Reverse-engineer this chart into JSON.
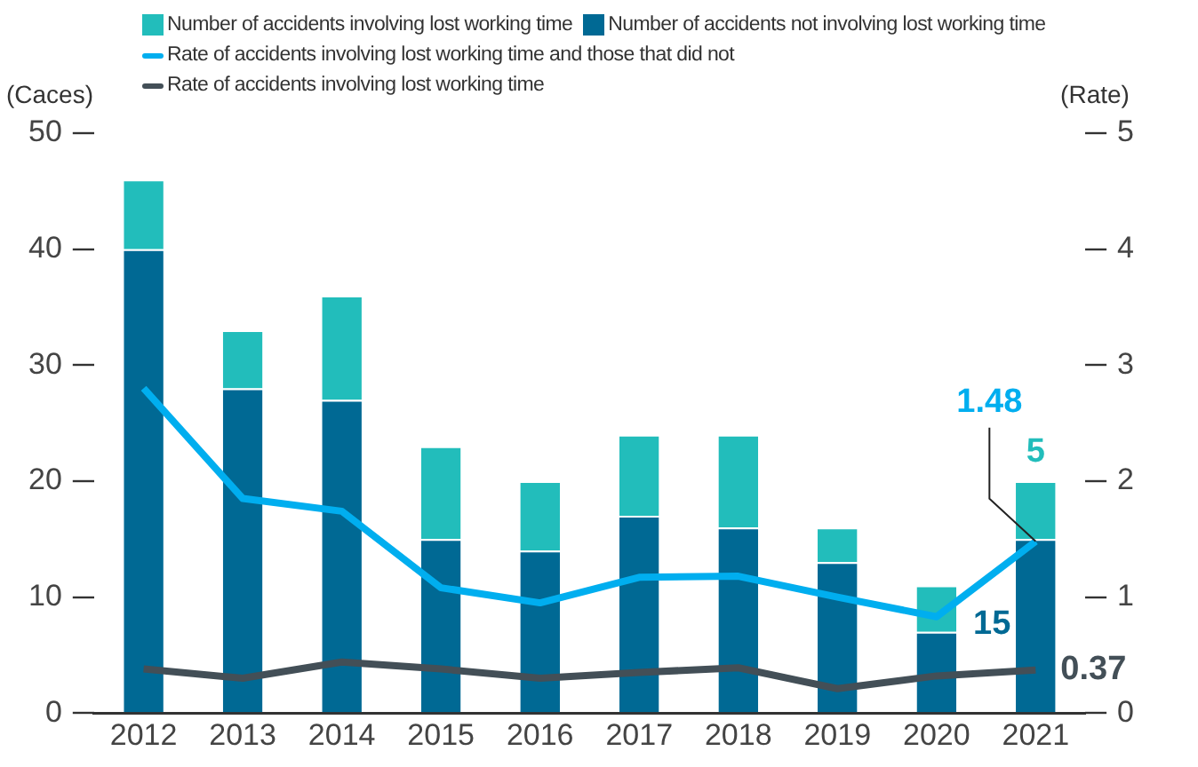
{
  "chart_data": {
    "type": "bar",
    "stacked": true,
    "ylabel": "(Caces)",
    "y2label": "(Rate)",
    "categories": [
      "2012",
      "2013",
      "2014",
      "2015",
      "2016",
      "2017",
      "2018",
      "2019",
      "2020",
      "2021"
    ],
    "series": [
      {
        "name": "Number of accidents not involving lost working time",
        "color": "#006994",
        "values": [
          40,
          28,
          27,
          15,
          14,
          17,
          16,
          13,
          7,
          15
        ],
        "value_labels": [
          null,
          null,
          null,
          null,
          null,
          null,
          null,
          null,
          null,
          "15"
        ]
      },
      {
        "name": "Number of accidents involving lost working time",
        "color": "#22bdbb",
        "values": [
          6,
          5,
          9,
          8,
          6,
          7,
          8,
          3,
          4,
          5
        ],
        "value_labels": [
          null,
          null,
          null,
          null,
          null,
          null,
          null,
          null,
          null,
          "5"
        ]
      },
      {
        "name": "Rate of accidents involving lost working time and those that did not",
        "type": "line",
        "axis": "y2",
        "color": "#00aeef",
        "values": [
          2.8,
          1.85,
          1.74,
          1.08,
          0.95,
          1.17,
          1.18,
          1.0,
          0.83,
          1.48
        ],
        "value_labels": [
          null,
          null,
          null,
          null,
          null,
          null,
          null,
          null,
          null,
          "1.48"
        ]
      },
      {
        "name": "Rate of accidents involving lost working time",
        "type": "line",
        "axis": "y2",
        "color": "#434f57",
        "values": [
          0.38,
          0.3,
          0.44,
          0.38,
          0.3,
          0.35,
          0.39,
          0.21,
          0.32,
          0.37
        ],
        "value_labels": [
          null,
          null,
          null,
          null,
          null,
          null,
          null,
          null,
          null,
          "0.37"
        ]
      }
    ],
    "ylim": [
      0,
      50
    ],
    "yticks": [
      0,
      10,
      20,
      30,
      40,
      50
    ],
    "y2lim": [
      0,
      5
    ],
    "y2ticks": [
      0,
      1,
      2,
      3,
      4,
      5
    ],
    "grid": false,
    "legend": "top",
    "marker": "none"
  }
}
